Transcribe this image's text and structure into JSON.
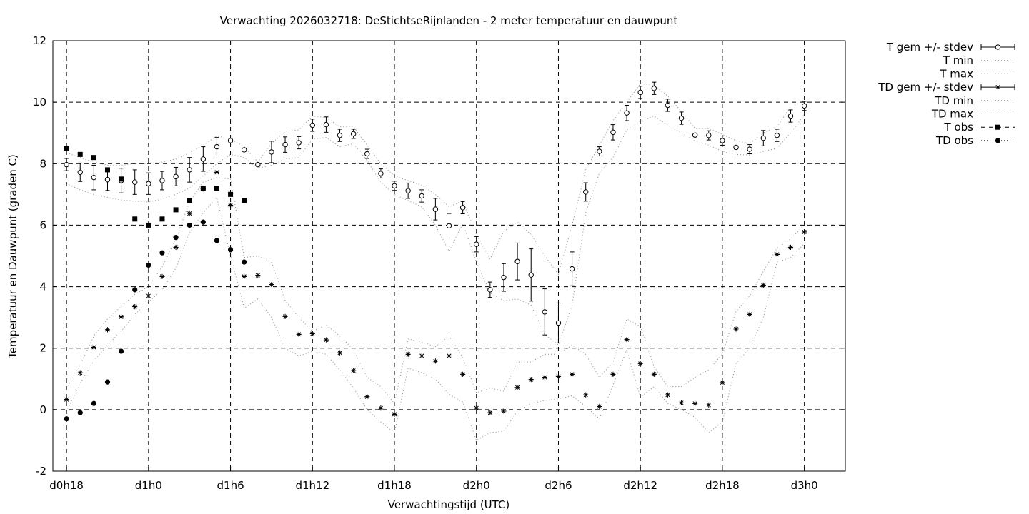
{
  "chart_data": {
    "type": "line",
    "title": "Verwachting 2026032718: DeStichtseRijnlanden - 2 meter temperatuur en dauwpunt",
    "xlabel": "Verwachtingstijd (UTC)",
    "ylabel": "Temperatuur en Dauwpunt (graden C)",
    "xlim": [
      17,
      75
    ],
    "ylim": [
      -2,
      12
    ],
    "x_ticks": [
      {
        "x": 18,
        "label": "d0h18"
      },
      {
        "x": 24,
        "label": "d1h0"
      },
      {
        "x": 30,
        "label": "d1h6"
      },
      {
        "x": 36,
        "label": "d1h12"
      },
      {
        "x": 42,
        "label": "d1h18"
      },
      {
        "x": 48,
        "label": "d2h0"
      },
      {
        "x": 54,
        "label": "d2h6"
      },
      {
        "x": 60,
        "label": "d2h12"
      },
      {
        "x": 66,
        "label": "d2h18"
      },
      {
        "x": 72,
        "label": "d3h0"
      }
    ],
    "y_ticks": [
      {
        "y": -2,
        "label": "-2"
      },
      {
        "y": 0,
        "label": "0"
      },
      {
        "y": 2,
        "label": "2"
      },
      {
        "y": 4,
        "label": "4"
      },
      {
        "y": 6,
        "label": "6"
      },
      {
        "y": 8,
        "label": "8"
      },
      {
        "y": 10,
        "label": "10"
      },
      {
        "y": 12,
        "label": "12"
      }
    ],
    "grid": true,
    "legend_position": "outside-right",
    "x": [
      18,
      19,
      20,
      21,
      22,
      23,
      24,
      25,
      26,
      27,
      28,
      29,
      30,
      31,
      32,
      33,
      34,
      35,
      36,
      37,
      38,
      39,
      40,
      41,
      42,
      43,
      44,
      45,
      46,
      47,
      48,
      49,
      50,
      51,
      52,
      53,
      54,
      55,
      56,
      57,
      58,
      59,
      60,
      61,
      62,
      63,
      64,
      65,
      66,
      67,
      68,
      69,
      70,
      71,
      72
    ],
    "series": [
      {
        "name": "T gem +/- stdev",
        "style": "errorbars-open-circle",
        "values": [
          7.97,
          7.72,
          7.55,
          7.48,
          7.45,
          7.4,
          7.35,
          7.45,
          7.58,
          7.8,
          8.15,
          8.55,
          8.75,
          8.45,
          7.97,
          8.38,
          8.62,
          8.68,
          9.25,
          9.27,
          8.92,
          8.97,
          8.32,
          7.68,
          7.28,
          7.12,
          6.95,
          6.52,
          5.98,
          6.57,
          5.38,
          3.9,
          4.3,
          4.82,
          4.38,
          3.18,
          2.82,
          4.58,
          7.08,
          8.4,
          9.02,
          9.65,
          10.32,
          10.45,
          9.9,
          9.48,
          8.93,
          8.92,
          8.75,
          8.53,
          8.47,
          8.83,
          8.92,
          9.55,
          9.88
        ],
        "stdev": [
          0.2,
          0.3,
          0.4,
          0.35,
          0.4,
          0.4,
          0.35,
          0.3,
          0.3,
          0.4,
          0.4,
          0.3,
          0.05,
          0.05,
          0.05,
          0.35,
          0.25,
          0.2,
          0.2,
          0.25,
          0.2,
          0.15,
          0.15,
          0.15,
          0.15,
          0.25,
          0.2,
          0.35,
          0.4,
          0.2,
          0.25,
          0.25,
          0.45,
          0.6,
          0.85,
          0.75,
          0.65,
          0.55,
          0.3,
          0.15,
          0.25,
          0.25,
          0.2,
          0.2,
          0.2,
          0.2,
          0.05,
          0.15,
          0.15,
          0.05,
          0.15,
          0.25,
          0.2,
          0.2,
          0.15
        ]
      },
      {
        "name": "T min",
        "style": "dotted",
        "values": [
          7.35,
          7.15,
          7.0,
          6.9,
          6.82,
          6.78,
          6.75,
          6.85,
          7.0,
          7.2,
          7.6,
          8.0,
          8.3,
          8.2,
          7.85,
          7.95,
          8.15,
          8.2,
          8.8,
          8.85,
          8.55,
          8.65,
          8.1,
          7.4,
          7.0,
          6.8,
          6.6,
          6.0,
          5.15,
          6.05,
          4.8,
          3.8,
          3.55,
          3.6,
          3.4,
          2.45,
          2.1,
          3.4,
          6.4,
          7.7,
          8.2,
          9.1,
          9.4,
          9.55,
          9.25,
          9.0,
          8.75,
          8.6,
          8.4,
          8.3,
          8.28,
          8.4,
          8.5,
          9.0,
          9.6
        ]
      },
      {
        "name": "T max",
        "style": "dotted",
        "values": [
          8.35,
          8.2,
          8.05,
          7.95,
          7.95,
          8.0,
          8.0,
          8.05,
          8.15,
          8.35,
          8.6,
          8.9,
          8.8,
          8.55,
          8.05,
          8.65,
          9.05,
          9.1,
          9.55,
          9.5,
          9.2,
          9.2,
          8.6,
          8.0,
          7.6,
          7.45,
          7.3,
          7.0,
          6.6,
          6.8,
          5.7,
          4.9,
          5.8,
          6.1,
          5.7,
          5.0,
          4.4,
          6.0,
          7.8,
          8.6,
          9.4,
          10.0,
          10.6,
          10.55,
          10.2,
          9.7,
          9.15,
          9.15,
          8.95,
          8.75,
          8.65,
          9.0,
          9.2,
          9.85,
          10.05
        ]
      },
      {
        "name": "TD gem +/- stdev",
        "style": "errorbars-asterisk",
        "values": [
          0.33,
          1.2,
          2.03,
          2.6,
          3.02,
          3.35,
          3.7,
          4.33,
          5.28,
          6.38,
          7.18,
          7.72,
          6.65,
          4.33,
          4.37,
          4.07,
          3.03,
          2.45,
          2.47,
          2.27,
          1.85,
          1.27,
          0.42,
          0.05,
          -0.15,
          1.8,
          1.75,
          1.58,
          1.75,
          1.15,
          0.05,
          -0.1,
          -0.05,
          0.72,
          0.98,
          1.05,
          1.08,
          1.15,
          0.48,
          0.1,
          1.15,
          2.28,
          1.5,
          1.15,
          0.48,
          0.22,
          0.2,
          0.15,
          0.88,
          2.62,
          3.1,
          4.05,
          5.05,
          5.28,
          5.78
        ]
      },
      {
        "name": "TD min",
        "style": "dotted",
        "values": [
          -0.05,
          0.85,
          1.6,
          2.1,
          2.55,
          3.1,
          3.5,
          3.9,
          4.6,
          5.75,
          6.4,
          6.9,
          5.0,
          3.3,
          3.6,
          3.0,
          2.0,
          1.75,
          1.9,
          1.8,
          1.3,
          0.7,
          0.0,
          -0.4,
          -0.75,
          1.35,
          1.2,
          1.0,
          0.5,
          0.25,
          -1.0,
          -0.75,
          -0.7,
          -0.05,
          0.2,
          0.3,
          0.35,
          0.45,
          0.1,
          -0.3,
          0.8,
          1.95,
          0.4,
          0.75,
          0.2,
          0.0,
          -0.25,
          -0.75,
          -0.4,
          1.5,
          2.0,
          3.0,
          4.8,
          4.95,
          5.4
        ]
      },
      {
        "name": "TD max",
        "style": "dotted",
        "values": [
          0.7,
          1.45,
          2.4,
          2.95,
          3.35,
          3.75,
          4.0,
          4.65,
          5.55,
          6.75,
          7.4,
          7.55,
          7.5,
          4.95,
          5.0,
          4.8,
          3.55,
          3.0,
          2.55,
          2.75,
          2.4,
          1.95,
          1.05,
          0.75,
          0.2,
          2.3,
          2.2,
          2.05,
          2.4,
          1.7,
          0.55,
          0.7,
          0.6,
          1.55,
          1.55,
          1.8,
          1.8,
          2.1,
          1.8,
          1.05,
          1.55,
          2.95,
          2.7,
          1.4,
          0.75,
          0.75,
          1.05,
          1.3,
          1.8,
          3.2,
          3.7,
          4.5,
          5.25,
          5.55,
          6.0
        ]
      },
      {
        "name": "T obs",
        "style": "filled-square",
        "x": [
          18,
          19,
          20,
          21,
          22,
          23,
          24,
          25,
          26,
          27,
          28,
          29,
          30,
          31
        ],
        "values": [
          8.5,
          8.3,
          8.2,
          7.8,
          7.5,
          6.2,
          6.0,
          6.2,
          6.5,
          6.8,
          7.2,
          7.2,
          7.0,
          6.8
        ]
      },
      {
        "name": "TD obs",
        "style": "filled-circle",
        "x": [
          18,
          19,
          20,
          21,
          22,
          23,
          24,
          25,
          26,
          27,
          28,
          29,
          30,
          31
        ],
        "values": [
          -0.3,
          -0.1,
          0.2,
          0.9,
          1.9,
          3.9,
          4.7,
          5.1,
          5.6,
          6.0,
          6.1,
          5.5,
          5.2,
          4.8
        ]
      }
    ]
  }
}
